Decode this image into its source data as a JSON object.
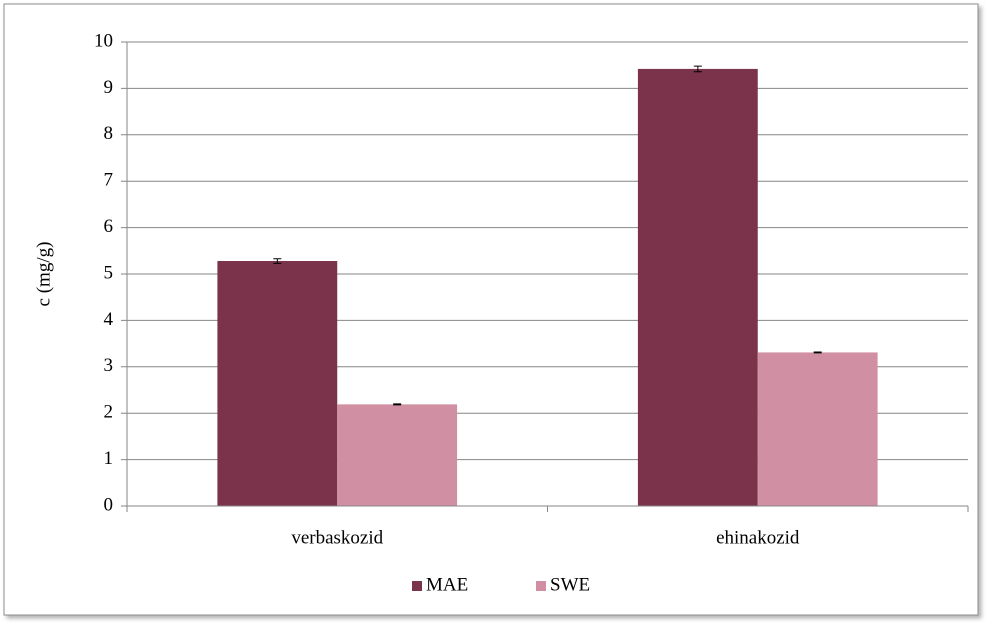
{
  "chart_data": {
    "type": "bar",
    "categories": [
      "verbaskozid",
      "ehinakozid"
    ],
    "series": [
      {
        "name": "MAE",
        "color": "#7b334b",
        "values": [
          5.28,
          9.42
        ],
        "errors": [
          0.05,
          0.06
        ]
      },
      {
        "name": "SWE",
        "color": "#d08fa3",
        "values": [
          2.19,
          3.31
        ],
        "errors": [
          0.01,
          0.01
        ]
      }
    ],
    "ylabel": "c (mg/g)",
    "ylim": [
      0,
      10
    ],
    "yticks": [
      0,
      1,
      2,
      3,
      4,
      5,
      6,
      7,
      8,
      9,
      10
    ],
    "grid": true,
    "legend": "bottom"
  }
}
